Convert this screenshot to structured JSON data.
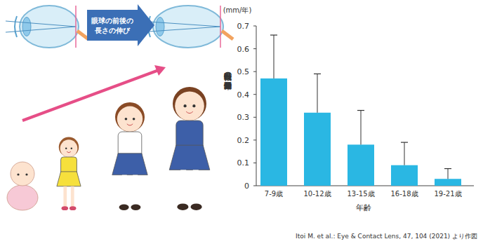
{
  "chart_data": {
    "type": "bar",
    "unit_label": "(mm/年)",
    "ylabel": "眼軸長の年間伸長量",
    "xlabel": "年齢",
    "categories": [
      "7-9歳",
      "10-12歳",
      "13-15歳",
      "16-18歳",
      "19-21歳"
    ],
    "values": [
      0.47,
      0.32,
      0.18,
      0.09,
      0.03
    ],
    "errors": [
      0.19,
      0.17,
      0.15,
      0.1,
      0.045
    ],
    "color": "#2ab7e3",
    "ylim": [
      0,
      0.7
    ],
    "yticks": [
      0,
      0.1,
      0.2,
      0.3,
      0.4,
      0.5,
      0.6,
      0.7
    ],
    "grid": false,
    "annotations": [
      "眼球の前後の",
      "長さの伸び"
    ],
    "source": "Itoi M. et al.: Eye & Contact Lens, 47, 104 (2021) より作図"
  }
}
